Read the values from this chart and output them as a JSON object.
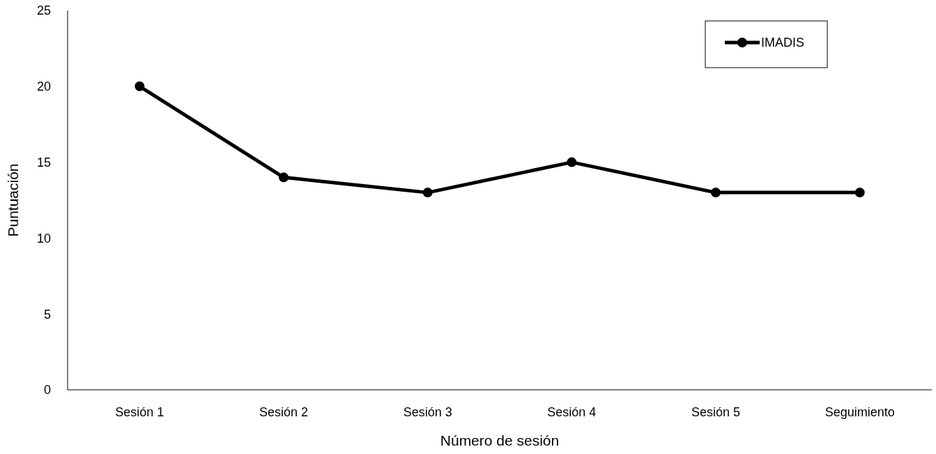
{
  "chart_data": {
    "type": "line",
    "xlabel": "Número de sesión",
    "ylabel": "Puntuación",
    "categories": [
      "Sesión 1",
      "Sesión 2",
      "Sesión 3",
      "Sesión 4",
      "Sesión 5",
      "Seguimiento"
    ],
    "series": [
      {
        "name": "IMADIS",
        "color": "#000000",
        "values": [
          20,
          14,
          13,
          15,
          13,
          13
        ]
      }
    ],
    "ylim": [
      0,
      25
    ],
    "yticks": [
      0,
      5,
      10,
      15,
      20,
      25
    ],
    "grid": false,
    "legend": "top right",
    "marker": "circle",
    "line_style": "solid"
  }
}
